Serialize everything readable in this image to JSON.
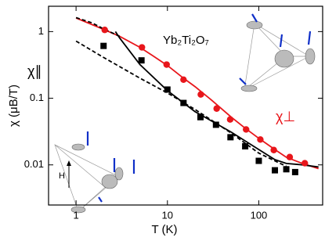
{
  "chart_data": {
    "type": "line",
    "xlabel": "T (K)",
    "ylabel": "χ (μB/T)",
    "xscale": "log",
    "yscale": "log",
    "xlim": [
      0.5,
      500
    ],
    "ylim": [
      0.0025,
      2.4
    ],
    "xticks": [
      1,
      10,
      100
    ],
    "yticks": [
      0.01,
      0.1,
      1
    ],
    "annotations": [
      "Yb₂Ti₂O₇",
      "χ∥",
      "χ⊥",
      "H"
    ],
    "series": [
      {
        "color": "#e8161b",
        "style": "solid",
        "x": [
          1,
          2,
          3,
          5,
          7,
          10,
          15,
          20,
          30,
          50,
          70,
          100,
          150,
          200,
          300,
          450
        ],
        "values": [
          1.6,
          1.08,
          0.85,
          0.58,
          0.43,
          0.31,
          0.2,
          0.15,
          0.095,
          0.052,
          0.036,
          0.025,
          0.017,
          0.013,
          0.0105,
          0.0088
        ]
      },
      {
        "color": "#000000",
        "style": "dashed",
        "x": [
          1,
          1.5,
          2,
          3
        ],
        "values": [
          1.62,
          1.35,
          1.1,
          0.85
        ]
      },
      {
        "color": "#000000",
        "style": "dashed",
        "x": [
          1,
          2,
          5,
          10,
          20,
          50,
          100,
          200
        ],
        "values": [
          0.72,
          0.41,
          0.2,
          0.12,
          0.068,
          0.03,
          0.015,
          0.0095
        ]
      },
      {
        "color": "#000000",
        "style": "solid",
        "x": [
          2.7,
          3,
          5,
          10,
          20,
          50,
          100,
          150,
          200,
          300,
          450
        ],
        "values": [
          1.0,
          0.8,
          0.32,
          0.13,
          0.063,
          0.031,
          0.017,
          0.012,
          0.0105,
          0.01,
          0.0093
        ]
      },
      {
        "color": "#e8161b",
        "style": "circle",
        "x": [
          2.06,
          5.26,
          9.8,
          15,
          23.2,
          34.6,
          48.6,
          72.6,
          104,
          146,
          218,
          319
        ],
        "values": [
          1.06,
          0.58,
          0.32,
          0.19,
          0.114,
          0.07,
          0.048,
          0.034,
          0.024,
          0.0167,
          0.0131,
          0.0106
        ]
      },
      {
        "color": "#000000",
        "style": "square",
        "x": [
          2,
          5.2,
          10,
          15,
          23,
          34,
          49,
          71,
          100,
          150,
          200,
          250
        ],
        "values": [
          0.61,
          0.37,
          0.135,
          0.085,
          0.052,
          0.04,
          0.026,
          0.019,
          0.0115,
          0.0083,
          0.0086,
          0.0078
        ]
      }
    ]
  }
}
